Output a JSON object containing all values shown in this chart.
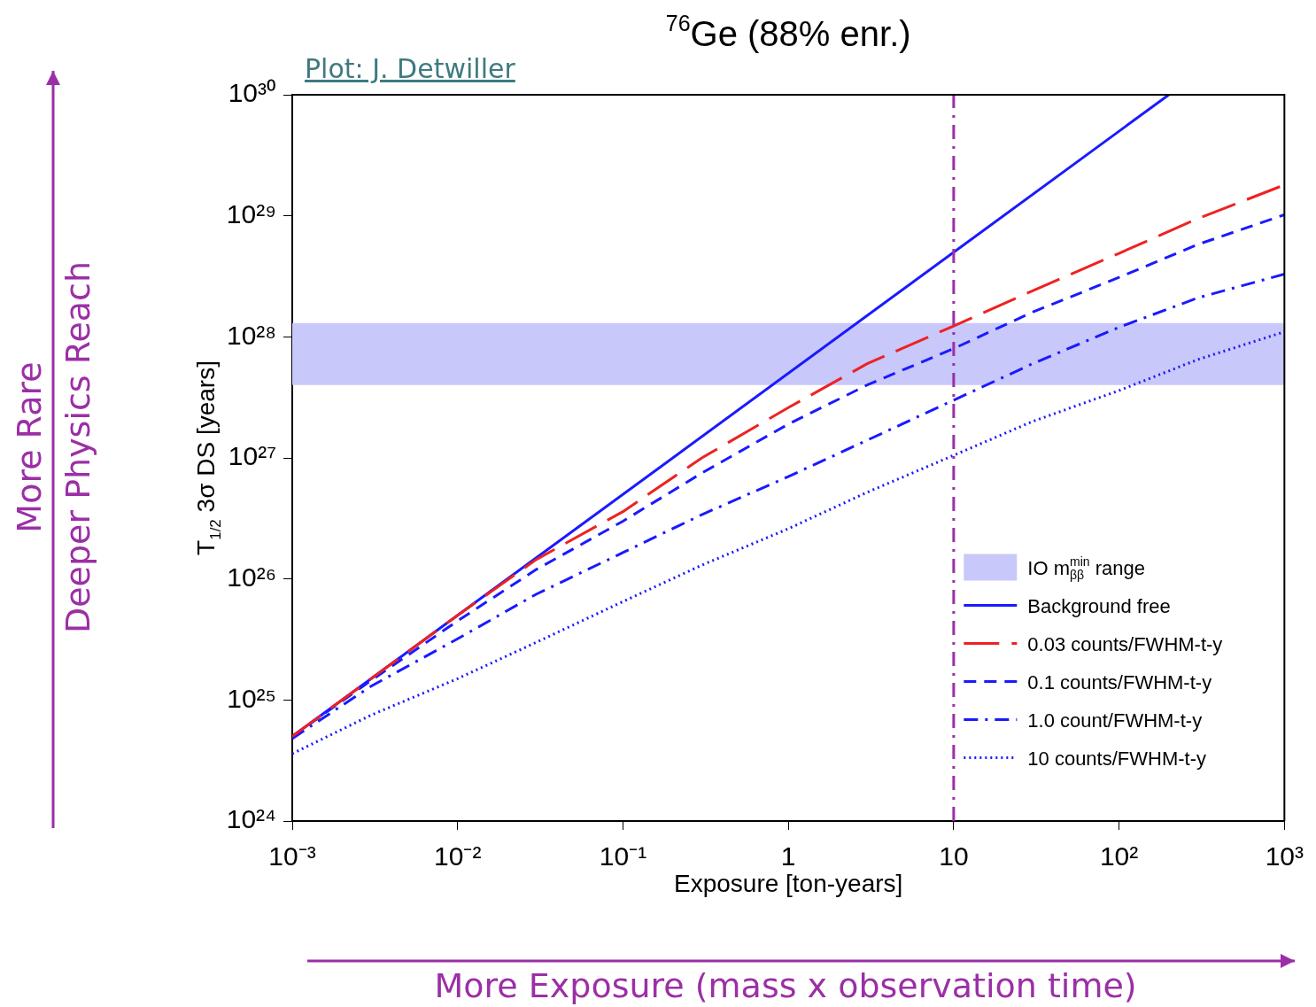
{
  "chart_data": {
    "type": "line",
    "title": "$^{76}$Ge (88% enr.)",
    "xlabel": "Exposure [ton-years]",
    "ylabel": "T$_{1/2}$ 3σ DS [years]",
    "log": "xy",
    "marker": "none",
    "legend": "bottom right",
    "xlim": [
      0.001,
      1000
    ],
    "ylim": [
      1e+24,
      1e+30
    ],
    "xticks": [
      {
        "value": 0.001,
        "label": "10⁻³"
      },
      {
        "value": 0.01,
        "label": "10⁻²"
      },
      {
        "value": 0.1,
        "label": "10⁻¹"
      },
      1,
      10,
      {
        "value": 100,
        "label": "10²"
      },
      {
        "value": 1000,
        "label": "10³"
      }
    ],
    "yticks": [
      {
        "value": 1e+24,
        "label": "10²⁴"
      },
      {
        "value": 1e+25,
        "label": "10²⁵"
      },
      {
        "value": 1e+26,
        "label": "10²⁶"
      },
      {
        "value": 1e+27,
        "label": "10²⁷"
      },
      {
        "value": 1e+28,
        "label": "10²⁸"
      },
      {
        "value": 1e+29,
        "label": "10²⁹"
      },
      {
        "value": 1e+30,
        "label": "10³⁰"
      }
    ],
    "bands": [
      {
        "axis": "y",
        "from": 4e+27,
        "to": 1.3e+28,
        "label": "IO m$_{ββ}$$^{min}$ range",
        "color": "#c8c8fa"
      }
    ],
    "ref_lines": [
      {
        "axis": "x",
        "value": 10,
        "color": "#9b2fa6",
        "line_style": "dashdot"
      }
    ],
    "x": [
      0.001,
      0.003,
      0.01,
      0.03,
      0.1,
      0.3,
      1,
      3,
      10,
      30,
      100,
      300,
      1000
    ],
    "series": [
      {
        "name": "Background free",
        "color": "#1a1aff",
        "line_style": "solid",
        "x": [
          0.001,
          200
        ],
        "values": [
          5e+24,
          1e+30
        ]
      },
      {
        "name": "0.03 counts/FWHM-t-y",
        "color": "#ee2222",
        "line_style": "longdash",
        "values": [
          5e+24,
          1.5e+25,
          5e+25,
          1.45e+26,
          3.6e+26,
          1e+27,
          2.6e+27,
          6e+27,
          1.23e+28,
          2.4e+28,
          4.9e+28,
          9.5e+28,
          1.8e+29
        ]
      },
      {
        "name": "0.1 counts/FWHM-t-y",
        "color": "#1a1aff",
        "line_style": "dashed",
        "values": [
          5e+24,
          1.45e+25,
          4.5e+25,
          1.2e+26,
          3e+26,
          7.5e+26,
          1.9e+27,
          4e+27,
          8e+27,
          1.6e+28,
          3.1e+28,
          5.8e+28,
          1.02e+29
        ]
      },
      {
        "name": "1.0 count/FWHM-t-y",
        "color": "#1a1aff",
        "line_style": "dashdot",
        "values": [
          4.8e+24,
          1.3e+25,
          3.2e+25,
          7.5e+25,
          1.65e+26,
          3.4e+26,
          7e+26,
          1.4e+27,
          3e+27,
          6e+27,
          1.2e+28,
          2.1e+28,
          3.3e+28
        ]
      },
      {
        "name": "10 counts/FWHM-t-y",
        "color": "#1a1aff",
        "line_style": "dotted",
        "values": [
          3.6e+24,
          7.5e+24,
          1.5e+25,
          3e+25,
          6.5e+25,
          1.3e+26,
          2.6e+26,
          5.2e+26,
          1.05e+27,
          2e+27,
          3.6e+27,
          6.5e+27,
          1.1e+28
        ]
      }
    ],
    "annotations": [
      "Plot: J. Detwiller",
      "More Rare",
      "Deeper Physics Reach",
      "More Exposure (mass x observation time)"
    ]
  }
}
